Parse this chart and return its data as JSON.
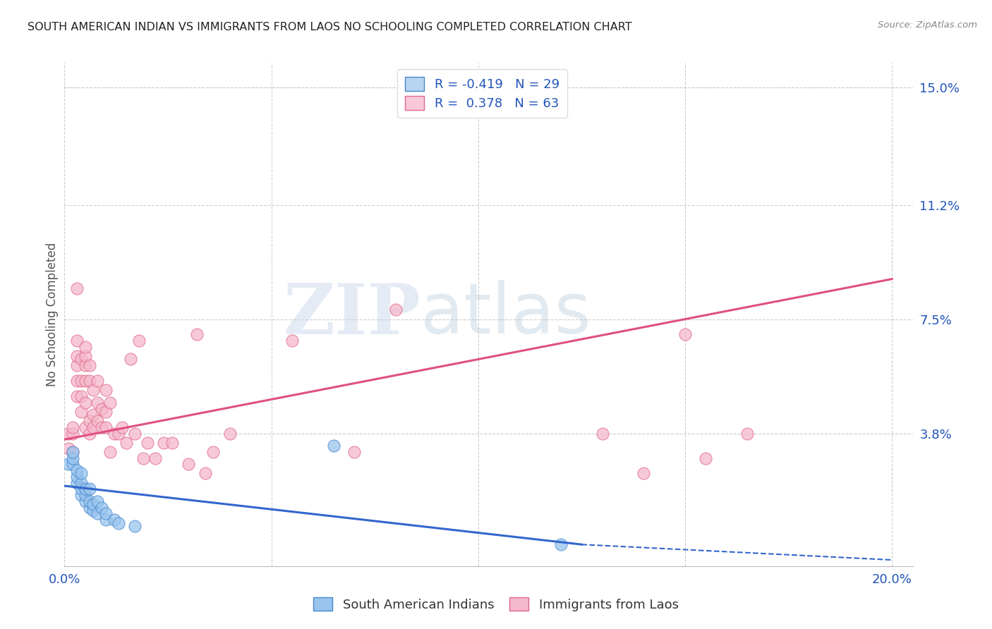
{
  "title": "SOUTH AMERICAN INDIAN VS IMMIGRANTS FROM LAOS NO SCHOOLING COMPLETED CORRELATION CHART",
  "source": "Source: ZipAtlas.com",
  "ylabel": "No Schooling Completed",
  "xlim": [
    0.0,
    0.205
  ],
  "ylim": [
    -0.005,
    0.158
  ],
  "ytick_labels_right": [
    "15.0%",
    "11.2%",
    "7.5%",
    "3.8%"
  ],
  "yticks_right": [
    0.15,
    0.112,
    0.075,
    0.038
  ],
  "legend1_label": "R = -0.419   N = 29",
  "legend2_label": "R =  0.378   N = 63",
  "legend1_facecolor": "#b8d4f0",
  "legend2_facecolor": "#f8c8d8",
  "line1_color": "#3366cc",
  "line2_color": "#e05080",
  "scatter1_facecolor": "#99c4ee",
  "scatter1_edgecolor": "#4488cc",
  "scatter2_facecolor": "#f5b8cc",
  "scatter2_edgecolor": "#e06888",
  "watermark_zip": "ZIP",
  "watermark_atlas": "atlas",
  "background_color": "#ffffff",
  "grid_color": "#cccccc",
  "title_color": "#222222",
  "axis_label_color": "#2255bb",
  "source_color": "#888888",
  "blue_x": [
    0.001,
    0.002,
    0.002,
    0.002,
    0.003,
    0.003,
    0.003,
    0.004,
    0.004,
    0.004,
    0.004,
    0.005,
    0.005,
    0.005,
    0.006,
    0.006,
    0.006,
    0.007,
    0.007,
    0.008,
    0.008,
    0.009,
    0.01,
    0.01,
    0.012,
    0.013,
    0.017,
    0.065,
    0.12
  ],
  "blue_y": [
    0.028,
    0.028,
    0.03,
    0.032,
    0.022,
    0.024,
    0.026,
    0.018,
    0.02,
    0.022,
    0.025,
    0.016,
    0.018,
    0.02,
    0.014,
    0.016,
    0.02,
    0.013,
    0.015,
    0.012,
    0.016,
    0.014,
    0.01,
    0.012,
    0.01,
    0.009,
    0.008,
    0.034,
    0.002
  ],
  "pink_x": [
    0.001,
    0.001,
    0.002,
    0.002,
    0.002,
    0.003,
    0.003,
    0.003,
    0.003,
    0.003,
    0.003,
    0.004,
    0.004,
    0.004,
    0.004,
    0.005,
    0.005,
    0.005,
    0.005,
    0.005,
    0.005,
    0.006,
    0.006,
    0.006,
    0.006,
    0.007,
    0.007,
    0.007,
    0.008,
    0.008,
    0.008,
    0.009,
    0.009,
    0.01,
    0.01,
    0.01,
    0.011,
    0.011,
    0.012,
    0.013,
    0.014,
    0.015,
    0.016,
    0.017,
    0.018,
    0.019,
    0.02,
    0.022,
    0.024,
    0.026,
    0.03,
    0.032,
    0.034,
    0.036,
    0.04,
    0.055,
    0.07,
    0.08,
    0.13,
    0.14,
    0.15,
    0.155,
    0.165
  ],
  "pink_y": [
    0.033,
    0.038,
    0.032,
    0.038,
    0.04,
    0.05,
    0.055,
    0.06,
    0.063,
    0.068,
    0.085,
    0.045,
    0.05,
    0.055,
    0.062,
    0.04,
    0.048,
    0.055,
    0.06,
    0.063,
    0.066,
    0.038,
    0.042,
    0.055,
    0.06,
    0.04,
    0.044,
    0.052,
    0.042,
    0.048,
    0.055,
    0.04,
    0.046,
    0.04,
    0.045,
    0.052,
    0.032,
    0.048,
    0.038,
    0.038,
    0.04,
    0.035,
    0.062,
    0.038,
    0.068,
    0.03,
    0.035,
    0.03,
    0.035,
    0.035,
    0.028,
    0.07,
    0.025,
    0.032,
    0.038,
    0.068,
    0.032,
    0.078,
    0.038,
    0.025,
    0.07,
    0.03,
    0.038
  ],
  "line1_x0": 0.0,
  "line1_x1": 0.125,
  "line1_y0": 0.021,
  "line1_y1": 0.002,
  "line1_dash_x0": 0.125,
  "line1_dash_x1": 0.2,
  "line1_dash_y0": 0.002,
  "line1_dash_y1": -0.003,
  "line2_x0": 0.0,
  "line2_x1": 0.2,
  "line2_y0": 0.036,
  "line2_y1": 0.088
}
